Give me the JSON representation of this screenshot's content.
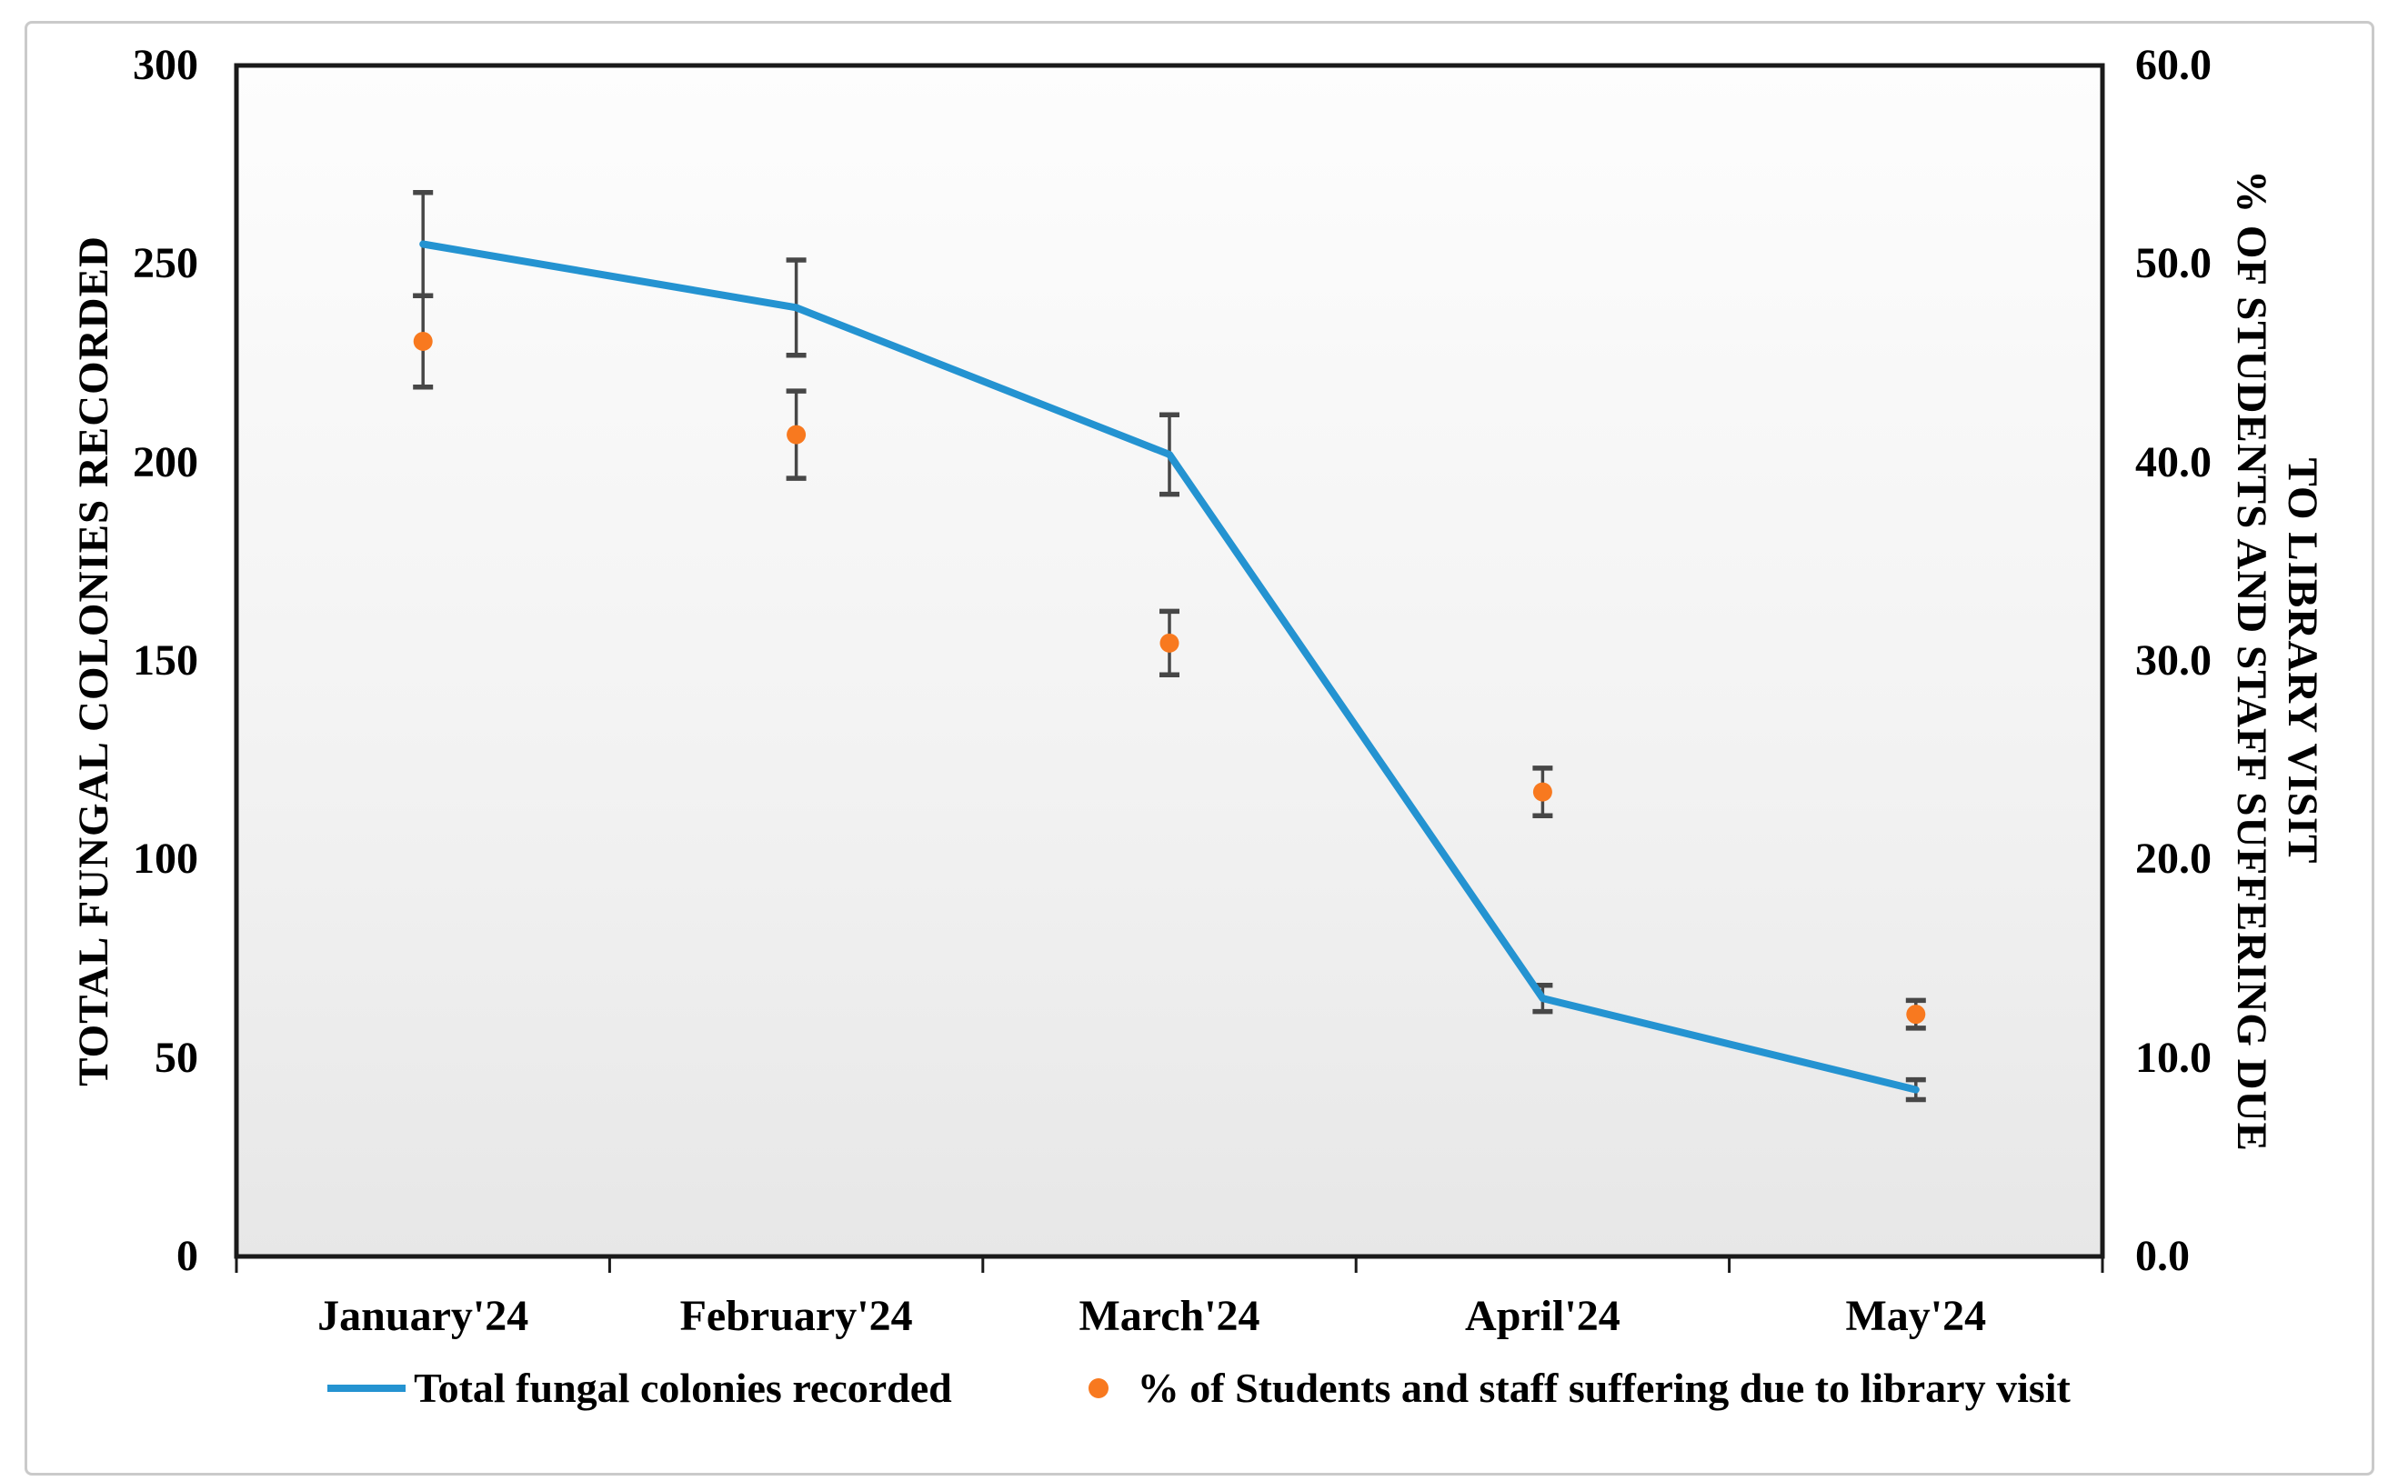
{
  "colors": {
    "line_blue": "#2493D1",
    "dot_orange": "#F8791F",
    "error_bar": "#474747",
    "plot_border": "#1a1a1a",
    "frame_border": "#cacaca",
    "plot_bg_top": "#FDFDFD",
    "plot_bg_mid": "#F2F2F2",
    "plot_bg_bottom": "#E7E7E7"
  },
  "chart_data": {
    "type": "line",
    "categories": [
      "January'24",
      "February'24",
      "March'24",
      "April'24",
      "May'24"
    ],
    "series": [
      {
        "name": "Total fungal colonies recorded",
        "type": "line",
        "axis": "left",
        "color": "#2493D1",
        "values": [
          255,
          239,
          202,
          65,
          42
        ],
        "error": [
          13,
          12,
          10,
          3.3,
          2.5
        ]
      },
      {
        "name": "% of Students and staff suffering due to library visit",
        "type": "scatter",
        "axis": "right",
        "color": "#F8791F",
        "values": [
          46.1,
          41.4,
          30.9,
          23.4,
          12.2
        ],
        "error": [
          2.3,
          2.2,
          1.6,
          1.2,
          0.7
        ]
      }
    ],
    "left_axis": {
      "title": "TOTAL FUNGAL COLONIES RECORDED",
      "min": 0,
      "max": 300,
      "step": 50,
      "ticks": [
        "300",
        "250",
        "200",
        "150",
        "100",
        "50",
        "0"
      ]
    },
    "right_axis": {
      "title_line1": "% OF STUDENTS AND STAFF SUFFERING DUE",
      "title_line2": "TO LIBRARY VISIT",
      "min": 0,
      "max": 60,
      "step": 10,
      "ticks": [
        "60.0",
        "50.0",
        "40.0",
        "30.0",
        "20.0",
        "10.0",
        "0.0"
      ]
    },
    "legend_position": "bottom",
    "grid": "off"
  }
}
